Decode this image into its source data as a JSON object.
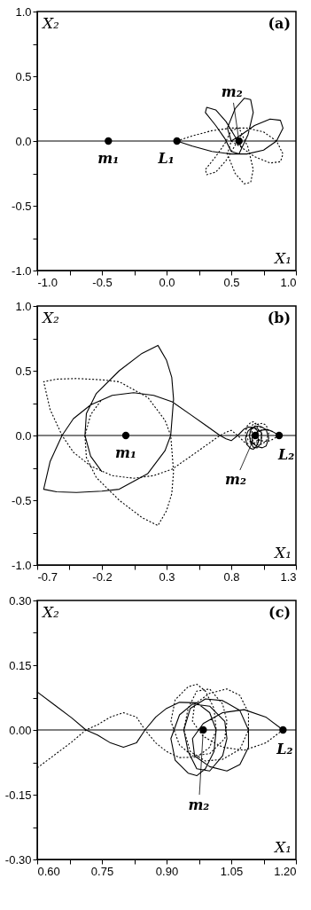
{
  "chart_data": [
    {
      "type": "line",
      "xlabel": "X₁",
      "ylabel": "X₂",
      "annotations": [
        "(a)",
        {
          "text": "m₁",
          "x": -0.45,
          "y": 0
        },
        {
          "text": "L₁",
          "x": 0.08,
          "y": 0
        },
        {
          "text": "m₂",
          "x": 0.56,
          "y": 0
        }
      ],
      "xlim": [
        -1.0,
        1.0
      ],
      "ylim": [
        -1.0,
        1.0
      ],
      "xticks": [
        {
          "value": -1.0,
          "label": "-1.0"
        },
        {
          "value": -0.75,
          "label": null
        },
        {
          "value": -0.5,
          "label": "-0.5"
        },
        {
          "value": -0.25,
          "label": null
        },
        {
          "value": 0,
          "label": "0.0"
        },
        {
          "value": 0.25,
          "label": null
        },
        {
          "value": 0.5,
          "label": "0.5"
        },
        {
          "value": 0.75,
          "label": null
        },
        {
          "value": 1.0,
          "label": "1.0"
        }
      ],
      "yticks": [
        {
          "value": -1.0,
          "label": "-1.0"
        },
        {
          "value": -0.75,
          "label": null
        },
        {
          "value": -0.5,
          "label": "-0.5"
        },
        {
          "value": -0.25,
          "label": null
        },
        {
          "value": 0,
          "label": "0.0"
        },
        {
          "value": 0.25,
          "label": null
        },
        {
          "value": 0.5,
          "label": "0.5"
        },
        {
          "value": 0.75,
          "label": null
        },
        {
          "value": 1.0,
          "label": "1.0"
        }
      ],
      "ref_lines": [
        {
          "axis": "y",
          "value": 0,
          "color": "#000000"
        }
      ],
      "series": [
        {
          "color": "#000000",
          "line_style": "solid",
          "x": [
            0.08,
            0.2,
            0.35,
            0.5,
            0.62,
            0.75,
            0.85,
            0.9,
            0.88,
            0.8,
            0.68,
            0.58,
            0.5,
            0.47,
            0.53,
            0.6,
            0.65,
            0.67,
            0.63,
            0.56,
            0.5,
            0.45,
            0.38,
            0.3,
            0.31,
            0.38,
            0.46,
            0.52,
            0.58
          ],
          "values": [
            0,
            -0.04,
            -0.08,
            -0.1,
            -0.1,
            -0.07,
            0.0,
            0.1,
            0.16,
            0.17,
            0.12,
            0.05,
            0.0,
            0.1,
            0.25,
            0.33,
            0.32,
            0.22,
            0.05,
            -0.1,
            -0.08,
            0.02,
            0.12,
            0.22,
            0.26,
            0.24,
            0.15,
            0.05,
            -0.05
          ]
        },
        {
          "color": "#000000",
          "line_style": "dotted",
          "x": [
            0.08,
            0.2,
            0.35,
            0.5,
            0.62,
            0.75,
            0.85,
            0.9,
            0.88,
            0.8,
            0.68,
            0.58,
            0.5,
            0.47,
            0.53,
            0.6,
            0.65,
            0.67,
            0.63,
            0.56,
            0.5,
            0.45,
            0.38,
            0.3,
            0.31,
            0.38,
            0.46,
            0.52,
            0.58
          ],
          "values": [
            0,
            0.04,
            0.08,
            0.1,
            0.1,
            0.07,
            0.0,
            -0.1,
            -0.16,
            -0.17,
            -0.12,
            -0.05,
            0.0,
            -0.1,
            -0.25,
            -0.33,
            -0.32,
            -0.22,
            -0.05,
            0.1,
            0.08,
            -0.02,
            -0.12,
            -0.22,
            -0.26,
            -0.24,
            -0.15,
            -0.05,
            0.05
          ]
        },
        {
          "type": "scatter",
          "color": "#000000",
          "marker": "circle",
          "x": [
            -0.45,
            0.08,
            0.56
          ],
          "values": [
            0,
            0,
            0
          ]
        }
      ]
    },
    {
      "type": "line",
      "xlabel": "X₁",
      "ylabel": "X₂",
      "annotations": [
        "(b)",
        {
          "text": "m₁",
          "x": -0.015,
          "y": 0
        },
        {
          "text": "L₂",
          "x": 1.17,
          "y": 0
        },
        {
          "text": "m₂",
          "x": 0.985,
          "y": 0
        }
      ],
      "xlim": [
        -0.7,
        1.3
      ],
      "ylim": [
        -1.0,
        1.0
      ],
      "xticks": [
        -0.7,
        {
          "value": -0.45,
          "label": null
        },
        -0.2,
        {
          "value": 0.05,
          "label": null
        },
        0.3,
        {
          "value": 0.55,
          "label": null
        },
        0.8,
        {
          "value": 1.05,
          "label": null
        },
        1.3
      ],
      "yticks": [
        {
          "value": -1.0,
          "label": "-1.0"
        },
        {
          "value": -0.75,
          "label": null
        },
        {
          "value": -0.5,
          "label": "-0.5"
        },
        {
          "value": -0.25,
          "label": null
        },
        {
          "value": 0,
          "label": "0.0"
        },
        {
          "value": 0.25,
          "label": null
        },
        {
          "value": 0.5,
          "label": "0.5"
        },
        {
          "value": 0.75,
          "label": null
        },
        {
          "value": 1.0,
          "label": "1.0"
        }
      ],
      "ref_lines": [
        {
          "axis": "y",
          "value": 0,
          "color": "#000000"
        }
      ],
      "series": [
        {
          "color": "#000000",
          "line_style": "solid",
          "x": [
            1.17,
            1.12,
            1.08,
            1.03,
            0.985,
            0.96,
            0.965,
            1.0,
            1.04,
            1.07,
            1.09,
            1.07,
            1.03,
            0.99,
            0.955,
            0.94,
            0.95,
            0.97,
            1.0,
            1.03,
            1.035,
            1.0,
            0.96,
            0.93,
            0.91,
            0.92,
            0.95,
            0.97,
            0.99,
            1.01,
            1.0,
            0.97,
            0.93,
            0.9,
            0.85,
            0.8,
            0.76,
            0.713,
            0.6,
            0.487,
            0.343,
            0.2,
            0.045,
            -0.12,
            -0.287,
            -0.42,
            -0.508,
            -0.6,
            -0.65,
            -0.55,
            -0.397,
            -0.2,
            -0.066,
            0.155,
            0.288,
            0.332,
            0.354,
            0.34,
            0.3,
            0.233,
            0.11,
            -0.066,
            -0.243,
            -0.32,
            -0.331,
            -0.287,
            -0.2
          ],
          "values": [
            0,
            0.03,
            0.047,
            0.04,
            0.015,
            -0.02,
            -0.06,
            -0.085,
            -0.095,
            -0.08,
            -0.02,
            0.045,
            0.068,
            0.072,
            0.05,
            0.0,
            -0.05,
            -0.09,
            -0.095,
            -0.06,
            0.02,
            0.055,
            0.06,
            0.035,
            -0.02,
            -0.07,
            -0.1,
            -0.106,
            -0.09,
            -0.05,
            0.04,
            0.063,
            0.064,
            0.05,
            0.0,
            -0.04,
            -0.025,
            0.0,
            0.08,
            0.16,
            0.26,
            0.31,
            0.33,
            0.31,
            0.236,
            0.13,
            0.0,
            -0.2,
            -0.415,
            -0.435,
            -0.44,
            -0.43,
            -0.415,
            -0.294,
            -0.117,
            0.0,
            0.28,
            0.45,
            0.58,
            0.696,
            0.634,
            0.5,
            0.325,
            0.17,
            0.0,
            -0.16,
            -0.28
          ]
        },
        {
          "color": "#000000",
          "line_style": "dotted",
          "x": [
            1.17,
            1.12,
            1.08,
            1.03,
            0.985,
            0.96,
            0.965,
            1.0,
            1.04,
            1.07,
            1.09,
            1.07,
            1.03,
            0.99,
            0.955,
            0.94,
            0.95,
            0.97,
            1.0,
            1.03,
            1.035,
            1.0,
            0.96,
            0.93,
            0.91,
            0.92,
            0.95,
            0.97,
            0.99,
            1.01,
            1.0,
            0.97,
            0.93,
            0.9,
            0.85,
            0.8,
            0.76,
            0.713,
            0.6,
            0.487,
            0.343,
            0.2,
            0.045,
            -0.12,
            -0.287,
            -0.42,
            -0.508,
            -0.6,
            -0.65,
            -0.55,
            -0.397,
            -0.2,
            -0.066,
            0.155,
            0.288,
            0.332,
            0.354,
            0.34,
            0.3,
            0.233,
            0.11,
            -0.066,
            -0.243,
            -0.32,
            -0.331,
            -0.287,
            -0.2
          ],
          "values": [
            0,
            -0.03,
            -0.047,
            -0.04,
            -0.015,
            0.02,
            0.06,
            0.085,
            0.095,
            0.08,
            0.02,
            -0.045,
            -0.068,
            -0.072,
            -0.05,
            0.0,
            0.05,
            0.09,
            0.095,
            0.06,
            -0.02,
            -0.055,
            -0.06,
            -0.035,
            0.02,
            0.07,
            0.1,
            0.106,
            0.09,
            0.05,
            -0.04,
            -0.063,
            -0.064,
            -0.05,
            0.0,
            0.04,
            0.025,
            0.0,
            -0.08,
            -0.16,
            -0.26,
            -0.31,
            -0.33,
            -0.31,
            -0.236,
            -0.13,
            0.0,
            0.2,
            0.415,
            0.435,
            0.44,
            0.43,
            0.415,
            0.294,
            0.117,
            0.0,
            -0.28,
            -0.45,
            -0.58,
            -0.696,
            -0.634,
            -0.5,
            -0.325,
            -0.17,
            0.0,
            0.16,
            0.28
          ]
        },
        {
          "type": "scatter",
          "color": "#000000",
          "marker": "circle",
          "x": [
            -0.015,
            0.985,
            1.17
          ],
          "values": [
            0,
            0,
            0
          ]
        }
      ]
    },
    {
      "type": "line",
      "xlabel": "X₁",
      "ylabel": "X₂",
      "annotations": [
        "(c)",
        {
          "text": "L₂",
          "x": 1.17,
          "y": 0
        },
        {
          "text": "m₂",
          "x": 0.985,
          "y": 0
        }
      ],
      "xlim": [
        0.6,
        1.2
      ],
      "ylim": [
        -0.3,
        0.3
      ],
      "xticks": [
        {
          "value": 0.6,
          "label": "0.60"
        },
        {
          "value": 0.675,
          "label": null
        },
        {
          "value": 0.75,
          "label": "0.75"
        },
        {
          "value": 0.825,
          "label": null
        },
        {
          "value": 0.9,
          "label": "0.90"
        },
        {
          "value": 0.975,
          "label": null
        },
        {
          "value": 1.05,
          "label": "1.05"
        },
        {
          "value": 1.125,
          "label": null
        },
        {
          "value": 1.2,
          "label": "1.20"
        }
      ],
      "yticks": [
        {
          "value": -0.3,
          "label": "-0.30"
        },
        {
          "value": -0.225,
          "label": null
        },
        {
          "value": -0.15,
          "label": "-0.15"
        },
        {
          "value": -0.075,
          "label": null
        },
        {
          "value": 0,
          "label": "0.00"
        },
        {
          "value": 0.075,
          "label": null
        },
        {
          "value": 0.15,
          "label": "0.15"
        },
        {
          "value": 0.225,
          "label": null
        },
        {
          "value": 0.3,
          "label": "0.30"
        }
      ],
      "ref_lines": [
        {
          "axis": "y",
          "value": 0,
          "color": "#000000"
        }
      ],
      "series": [
        {
          "color": "#000000",
          "line_style": "solid",
          "x": [
            1.17,
            1.13,
            1.08,
            1.03,
            0.985,
            0.96,
            0.965,
            1.0,
            1.04,
            1.07,
            1.09,
            1.09,
            1.07,
            1.03,
            0.99,
            0.955,
            0.94,
            0.95,
            0.97,
            1.0,
            1.03,
            1.04,
            1.035,
            1.0,
            0.96,
            0.93,
            0.91,
            0.92,
            0.95,
            0.97,
            0.99,
            1.01,
            1.015,
            1.0,
            0.97,
            0.93,
            0.9,
            0.875,
            0.85,
            0.83,
            0.8,
            0.77,
            0.74,
            0.713,
            0.68,
            0.64,
            0.6
          ],
          "values": [
            0,
            0.03,
            0.047,
            0.04,
            0.015,
            -0.02,
            -0.06,
            -0.085,
            -0.095,
            -0.08,
            -0.04,
            0.0,
            0.045,
            0.068,
            0.072,
            0.05,
            0.0,
            -0.05,
            -0.09,
            -0.095,
            -0.06,
            -0.02,
            0.02,
            0.055,
            0.06,
            0.035,
            -0.02,
            -0.07,
            -0.1,
            -0.106,
            -0.09,
            -0.05,
            0.0,
            0.04,
            0.063,
            0.064,
            0.05,
            0.03,
            0.0,
            -0.03,
            -0.04,
            -0.03,
            -0.012,
            0.0,
            0.028,
            0.058,
            0.088
          ]
        },
        {
          "color": "#000000",
          "line_style": "dotted",
          "x": [
            1.17,
            1.13,
            1.08,
            1.03,
            0.985,
            0.96,
            0.965,
            1.0,
            1.04,
            1.07,
            1.09,
            1.09,
            1.07,
            1.03,
            0.99,
            0.955,
            0.94,
            0.95,
            0.97,
            1.0,
            1.03,
            1.04,
            1.035,
            1.0,
            0.96,
            0.93,
            0.91,
            0.92,
            0.95,
            0.97,
            0.99,
            1.01,
            1.015,
            1.0,
            0.97,
            0.93,
            0.9,
            0.875,
            0.85,
            0.83,
            0.8,
            0.77,
            0.74,
            0.713,
            0.68,
            0.64,
            0.6
          ],
          "values": [
            0,
            -0.03,
            -0.047,
            -0.04,
            -0.015,
            0.02,
            0.06,
            0.085,
            0.095,
            0.08,
            0.04,
            0.0,
            -0.045,
            -0.068,
            -0.072,
            -0.05,
            0.0,
            0.05,
            0.09,
            0.095,
            0.06,
            0.02,
            -0.02,
            -0.055,
            -0.06,
            -0.035,
            0.02,
            0.07,
            0.1,
            0.106,
            0.09,
            0.05,
            0.0,
            -0.04,
            -0.063,
            -0.064,
            -0.05,
            -0.03,
            0.0,
            0.03,
            0.04,
            0.03,
            0.012,
            0.0,
            -0.028,
            -0.058,
            -0.088
          ]
        },
        {
          "type": "scatter",
          "color": "#000000",
          "marker": "circle",
          "x": [
            0.985,
            1.17
          ],
          "values": [
            0,
            0
          ]
        }
      ]
    }
  ]
}
